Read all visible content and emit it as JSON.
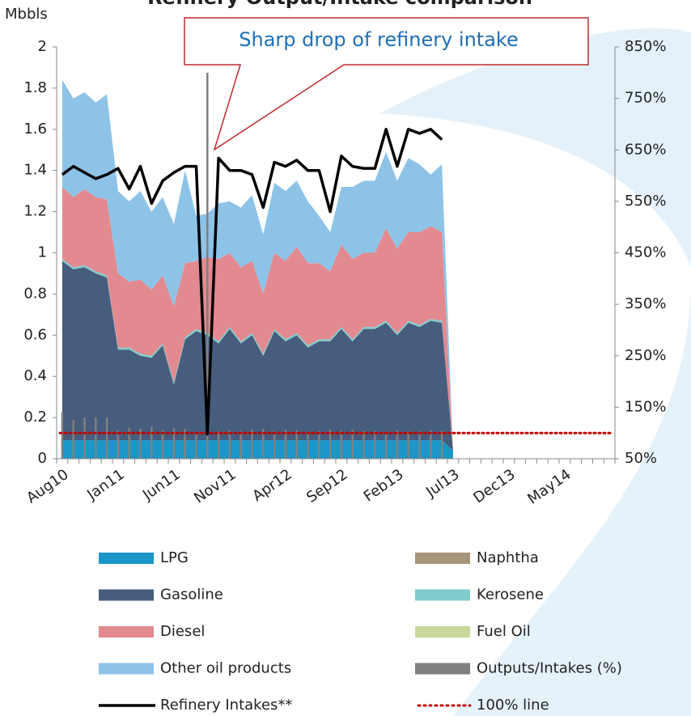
{
  "chart_data": {
    "type": "area",
    "title": "Refinery Output/Intake comparison",
    "y_label": "Mbbls",
    "annotation": "Sharp drop of refinery intake",
    "categories": [
      "Aug10",
      null,
      null,
      null,
      null,
      "Jan11",
      null,
      null,
      null,
      null,
      "Jun11",
      null,
      null,
      null,
      null,
      "Nov11",
      null,
      null,
      null,
      null,
      "Apr12",
      null,
      null,
      null,
      null,
      "Sep12",
      null,
      null,
      null,
      null,
      "Feb13",
      null,
      null,
      null,
      null,
      "Jul13",
      null,
      null,
      null,
      null,
      "Dec13",
      null,
      null,
      null,
      null,
      "May14",
      null,
      null,
      null,
      null
    ],
    "ylim": [
      0,
      2
    ],
    "yticks": [
      0,
      0.2,
      0.4,
      0.6,
      0.8,
      1,
      1.2,
      1.4,
      1.6,
      1.8,
      2
    ],
    "y2lim": [
      50,
      850
    ],
    "y2ticks": [
      {
        "value": 50,
        "label": "50%"
      },
      {
        "value": 150,
        "label": "150%"
      },
      {
        "value": 250,
        "label": "250%"
      },
      {
        "value": 350,
        "label": "350%"
      },
      {
        "value": 450,
        "label": "450%"
      },
      {
        "value": 550,
        "label": "550%"
      },
      {
        "value": 650,
        "label": "650%"
      },
      {
        "value": 750,
        "label": "750%"
      },
      {
        "value": 850,
        "label": "850%"
      }
    ],
    "stacked": true,
    "series": [
      {
        "name": "LPG",
        "type": "area",
        "color": "#1a96c8",
        "values": [
          0.09,
          0.09,
          0.09,
          0.09,
          0.09,
          0.09,
          0.09,
          0.09,
          0.09,
          0.09,
          0.09,
          0.09,
          0.09,
          0.09,
          0.09,
          0.09,
          0.09,
          0.09,
          0.09,
          0.09,
          0.09,
          0.09,
          0.09,
          0.09,
          0.09,
          0.09,
          0.09,
          0.09,
          0.09,
          0.09,
          0.09,
          0.09,
          0.09,
          0.09,
          0.09,
          0.04,
          null,
          null,
          null,
          null,
          null,
          null,
          null,
          null,
          null,
          null,
          null,
          null,
          null,
          null
        ]
      },
      {
        "name": "Naphtha",
        "type": "area",
        "color": "#a89478",
        "values": [
          0,
          0,
          0,
          0,
          0,
          0,
          0,
          0,
          0,
          0,
          0,
          0,
          0,
          0,
          0,
          0,
          0,
          0,
          0,
          0,
          0,
          0,
          0,
          0,
          0,
          0,
          0,
          0,
          0,
          0,
          0,
          0,
          0,
          0,
          0,
          0,
          null,
          null,
          null,
          null,
          null,
          null,
          null,
          null,
          null,
          null,
          null,
          null,
          null,
          null
        ]
      },
      {
        "name": "Gasoline",
        "type": "area",
        "color": "#465d7d",
        "values": [
          0.87,
          0.83,
          0.84,
          0.81,
          0.79,
          0.44,
          0.44,
          0.41,
          0.4,
          0.46,
          0.27,
          0.49,
          0.53,
          0.51,
          0.47,
          0.54,
          0.47,
          0.51,
          0.41,
          0.53,
          0.48,
          0.51,
          0.45,
          0.48,
          0.48,
          0.54,
          0.48,
          0.54,
          0.54,
          0.57,
          0.51,
          0.57,
          0.55,
          0.58,
          0.57,
          0,
          null,
          null,
          null,
          null,
          null,
          null,
          null,
          null,
          null,
          null,
          null,
          null,
          null,
          null
        ]
      },
      {
        "name": "Kerosene",
        "type": "area",
        "color": "#80cccc",
        "values": [
          0.01,
          0.01,
          0.01,
          0.01,
          0.01,
          0.01,
          0.01,
          0.01,
          0.01,
          0.01,
          0.01,
          0.01,
          0.01,
          0.01,
          0.01,
          0.01,
          0.01,
          0.01,
          0.01,
          0.01,
          0.01,
          0.01,
          0.01,
          0.01,
          0.01,
          0.01,
          0.01,
          0.01,
          0.01,
          0.01,
          0.01,
          0.01,
          0.01,
          0.01,
          0.01,
          0,
          null,
          null,
          null,
          null,
          null,
          null,
          null,
          null,
          null,
          null,
          null,
          null,
          null,
          null
        ]
      },
      {
        "name": "Diesel",
        "type": "area",
        "color": "#e28a8f",
        "values": [
          0.35,
          0.34,
          0.37,
          0.36,
          0.37,
          0.36,
          0.32,
          0.36,
          0.32,
          0.33,
          0.37,
          0.36,
          0.33,
          0.37,
          0.4,
          0.36,
          0.36,
          0.35,
          0.29,
          0.37,
          0.38,
          0.42,
          0.4,
          0.37,
          0.33,
          0.4,
          0.39,
          0.36,
          0.36,
          0.45,
          0.41,
          0.43,
          0.45,
          0.45,
          0.43,
          0,
          null,
          null,
          null,
          null,
          null,
          null,
          null,
          null,
          null,
          null,
          null,
          null,
          null,
          null
        ]
      },
      {
        "name": "Fuel Oil",
        "type": "area",
        "color": "#c8d89a",
        "values": [
          0,
          0,
          0,
          0,
          0,
          0,
          0,
          0,
          0,
          0,
          0,
          0,
          0,
          0,
          0,
          0,
          0,
          0,
          0,
          0,
          0,
          0,
          0,
          0,
          0,
          0,
          0,
          0,
          0,
          0,
          0,
          0,
          0,
          0,
          0,
          0,
          null,
          null,
          null,
          null,
          null,
          null,
          null,
          null,
          null,
          null,
          null,
          null,
          null,
          null
        ]
      },
      {
        "name": "Other oil products",
        "type": "area",
        "color": "#8ec3e8",
        "values": [
          0.52,
          0.48,
          0.47,
          0.46,
          0.51,
          0.4,
          0.39,
          0.43,
          0.38,
          0.38,
          0.4,
          0.45,
          0.22,
          0.21,
          0.27,
          0.25,
          0.29,
          0.32,
          0.29,
          0.34,
          0.34,
          0.32,
          0.3,
          0.23,
          0.19,
          0.28,
          0.35,
          0.35,
          0.35,
          0.37,
          0.33,
          0.36,
          0.33,
          0.25,
          0.33,
          0,
          null,
          null,
          null,
          null,
          null,
          null,
          null,
          null,
          null,
          null,
          null,
          null,
          null,
          null
        ]
      },
      {
        "name": "Outputs/Intakes (%)",
        "type": "bar",
        "axis": "y2",
        "color": "#808080",
        "values": [
          140,
          125,
          130,
          130,
          130,
          105,
          110,
          108,
          112,
          105,
          110,
          108,
          102,
          800,
          103,
          105,
          104,
          106,
          108,
          104,
          106,
          105,
          103,
          104,
          107,
          104,
          106,
          104,
          104,
          103,
          105,
          103,
          104,
          105,
          104,
          null,
          null,
          null,
          null,
          null,
          null,
          null,
          null,
          null,
          null,
          null,
          null,
          null,
          null,
          null
        ]
      },
      {
        "name": "Refinery Intakes**",
        "type": "line",
        "color": "#000000",
        "values": [
          1.38,
          1.42,
          1.39,
          1.36,
          1.38,
          1.41,
          1.31,
          1.42,
          1.24,
          1.35,
          1.39,
          1.42,
          1.42,
          0.12,
          1.46,
          1.4,
          1.4,
          1.38,
          1.22,
          1.44,
          1.42,
          1.45,
          1.4,
          1.4,
          1.2,
          1.47,
          1.42,
          1.41,
          1.41,
          1.6,
          1.42,
          1.6,
          1.58,
          1.6,
          1.55,
          null,
          null,
          null,
          null,
          null,
          null,
          null,
          null,
          null,
          null,
          null,
          null,
          null,
          null,
          null
        ]
      }
    ],
    "reference_line": {
      "name": "100% line",
      "value": 100,
      "axis": "y2",
      "color": "#c00000"
    }
  }
}
